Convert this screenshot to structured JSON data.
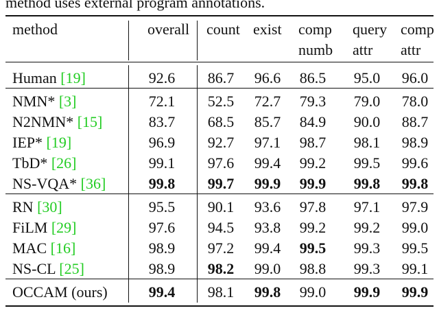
{
  "caption": "method uses external program annotations.",
  "header": [
    [
      "method"
    ],
    [
      "overall"
    ],
    [
      "count"
    ],
    [
      "exist"
    ],
    [
      "comp",
      "numb"
    ],
    [
      "query",
      "attr"
    ],
    [
      "comp",
      "attr"
    ]
  ],
  "groups": [
    [
      {
        "method": "Human",
        "ref": "[19]",
        "values": [
          "92.6",
          "86.7",
          "96.6",
          "86.5",
          "95.0",
          "96.0"
        ],
        "bold": []
      }
    ],
    [
      {
        "method": "NMN*",
        "ref": "[3]",
        "values": [
          "72.1",
          "52.5",
          "72.7",
          "79.3",
          "79.0",
          "78.0"
        ],
        "bold": []
      },
      {
        "method": "N2NMN*",
        "ref": "[15]",
        "values": [
          "83.7",
          "68.5",
          "85.7",
          "84.9",
          "90.0",
          "88.7"
        ],
        "bold": []
      },
      {
        "method": "IEP*",
        "ref": "[19]",
        "values": [
          "96.9",
          "92.7",
          "97.1",
          "98.7",
          "98.1",
          "98.9"
        ],
        "bold": []
      },
      {
        "method": "TbD*",
        "ref": "[26]",
        "values": [
          "99.1",
          "97.6",
          "99.4",
          "99.2",
          "99.5",
          "99.6"
        ],
        "bold": []
      },
      {
        "method": "NS-VQA*",
        "ref": "[36]",
        "values": [
          "99.8",
          "99.7",
          "99.9",
          "99.9",
          "99.8",
          "99.8"
        ],
        "bold": [
          0,
          1,
          2,
          3,
          4,
          5
        ]
      }
    ],
    [
      {
        "method": "RN",
        "ref": "[30]",
        "values": [
          "95.5",
          "90.1",
          "93.6",
          "97.8",
          "97.1",
          "97.9"
        ],
        "bold": []
      },
      {
        "method": "FiLM",
        "ref": "[29]",
        "values": [
          "97.6",
          "94.5",
          "93.8",
          "99.2",
          "99.2",
          "99.0"
        ],
        "bold": []
      },
      {
        "method": "MAC",
        "ref": "[16]",
        "values": [
          "98.9",
          "97.2",
          "99.4",
          "99.5",
          "99.3",
          "99.5"
        ],
        "bold": [
          3
        ]
      },
      {
        "method": "NS-CL",
        "ref": "[25]",
        "values": [
          "98.9",
          "98.2",
          "99.0",
          "98.8",
          "99.3",
          "99.1"
        ],
        "bold": [
          1
        ]
      }
    ],
    [
      {
        "method": "OCCAM (ours)",
        "values": [
          "99.4",
          "98.1",
          "99.8",
          "99.0",
          "99.9",
          "99.9"
        ],
        "bold": [
          0,
          2,
          4,
          5
        ]
      }
    ]
  ]
}
